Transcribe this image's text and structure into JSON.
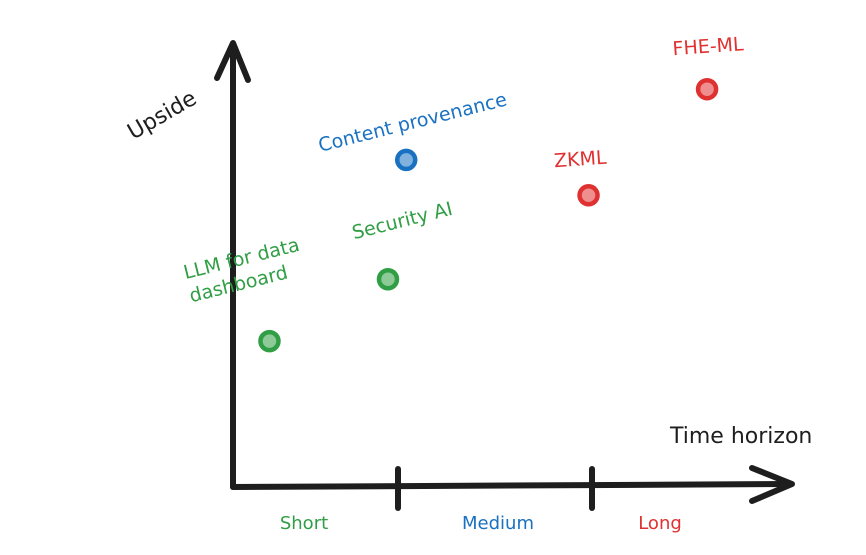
{
  "chart_data": {
    "type": "scatter",
    "xlabel": "Time horizon",
    "ylabel": "Upside",
    "categories": [
      "Short",
      "Medium",
      "Long"
    ],
    "category_colors": [
      "#2f9e44",
      "#1971c2",
      "#e03131"
    ],
    "xlim": [
      0,
      3
    ],
    "ylim": [
      0,
      10
    ],
    "points": [
      {
        "label": "LLM for data dashboard",
        "label_lines": [
          "LLM for data",
          "dashboard"
        ],
        "x": 0.2,
        "y": 3.3,
        "color": "#2f9e44"
      },
      {
        "label": "Security AI",
        "label_lines": [
          "Security AI"
        ],
        "x": 0.85,
        "y": 4.7,
        "color": "#2f9e44"
      },
      {
        "label": "Content provenance",
        "label_lines": [
          "Content provenance"
        ],
        "x": 0.95,
        "y": 7.4,
        "color": "#1971c2"
      },
      {
        "label": "ZKML",
        "label_lines": [
          "ZKML"
        ],
        "x": 1.95,
        "y": 6.6,
        "color": "#e03131"
      },
      {
        "label": "FHE-ML",
        "label_lines": [
          "FHE-ML"
        ],
        "x": 2.6,
        "y": 9.0,
        "color": "#e03131"
      }
    ]
  }
}
